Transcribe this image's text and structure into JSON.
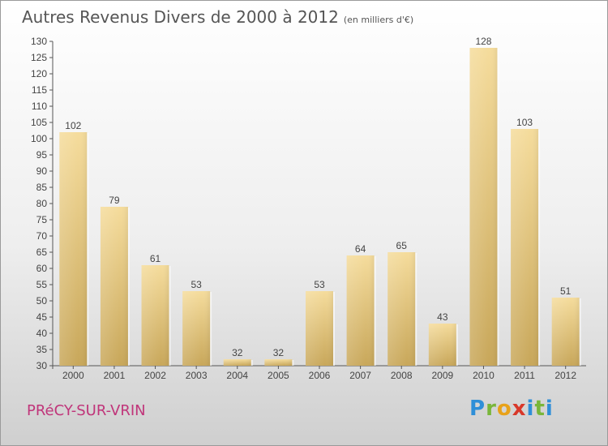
{
  "title": "Autres Revenus Divers de 2000 à 2012",
  "subtitle": "(en milliers d'€)",
  "town": "PRéCY-SUR-VRIN",
  "logo": {
    "letters": [
      "P",
      "r",
      "o",
      "x",
      "i",
      "t",
      "i"
    ]
  },
  "colors": {
    "bar_light": "#f5dc9c",
    "bar_dark": "#c8a75a",
    "town": "#c0357a",
    "axis": "#555555"
  },
  "chart_data": {
    "type": "bar",
    "categories": [
      "2000",
      "2001",
      "2002",
      "2003",
      "2004",
      "2005",
      "2006",
      "2007",
      "2008",
      "2009",
      "2010",
      "2011",
      "2012"
    ],
    "values": [
      102,
      79,
      61,
      53,
      32,
      32,
      53,
      64,
      65,
      43,
      128,
      103,
      51
    ],
    "ylim": [
      30,
      130
    ],
    "yticks": [
      30,
      35,
      40,
      45,
      50,
      55,
      60,
      65,
      70,
      75,
      80,
      85,
      90,
      95,
      100,
      105,
      110,
      115,
      120,
      125,
      130
    ],
    "grid": false,
    "legend": "none"
  }
}
